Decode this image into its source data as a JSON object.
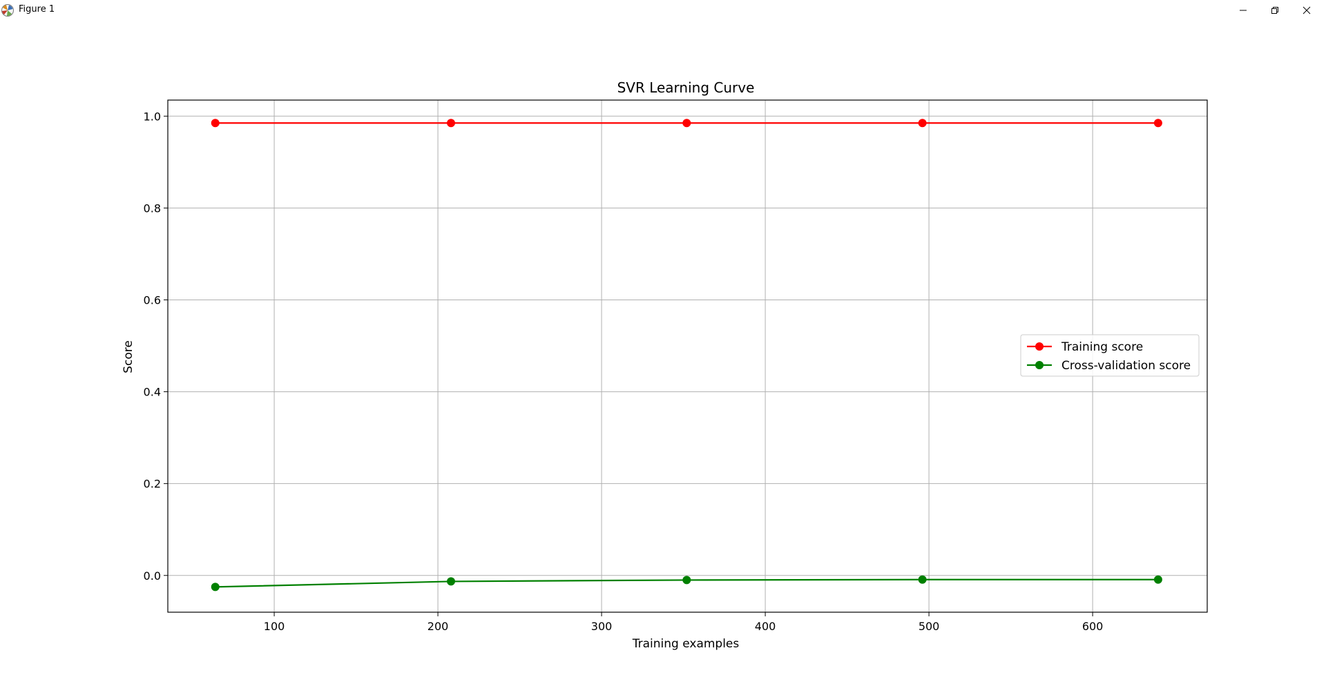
{
  "window": {
    "title": "Figure 1",
    "icons": {
      "app": "matplotlib-icon",
      "minimize": "minimize-icon",
      "restore": "restore-icon",
      "close": "close-icon"
    }
  },
  "chart_data": {
    "type": "line",
    "title": "SVR Learning Curve",
    "xlabel": "Training examples",
    "ylabel": "Score",
    "xlim": [
      35,
      670
    ],
    "ylim": [
      -0.08,
      1.035
    ],
    "xticks": [
      100,
      200,
      300,
      400,
      500,
      600
    ],
    "yticks": [
      0.0,
      0.2,
      0.4,
      0.6,
      0.8,
      1.0
    ],
    "xtick_labels": [
      "100",
      "200",
      "300",
      "400",
      "500",
      "600"
    ],
    "ytick_labels": [
      "0.0",
      "0.2",
      "0.4",
      "0.6",
      "0.8",
      "1.0"
    ],
    "grid": true,
    "legend_position": "center-right",
    "x": [
      64,
      208,
      352,
      496,
      640
    ],
    "series": [
      {
        "name": "Training score",
        "color": "#ff0000",
        "values": [
          0.985,
          0.985,
          0.985,
          0.985,
          0.985
        ]
      },
      {
        "name": "Cross-validation score",
        "color": "#008000",
        "values": [
          -0.025,
          -0.013,
          -0.01,
          -0.009,
          -0.009
        ]
      }
    ]
  }
}
